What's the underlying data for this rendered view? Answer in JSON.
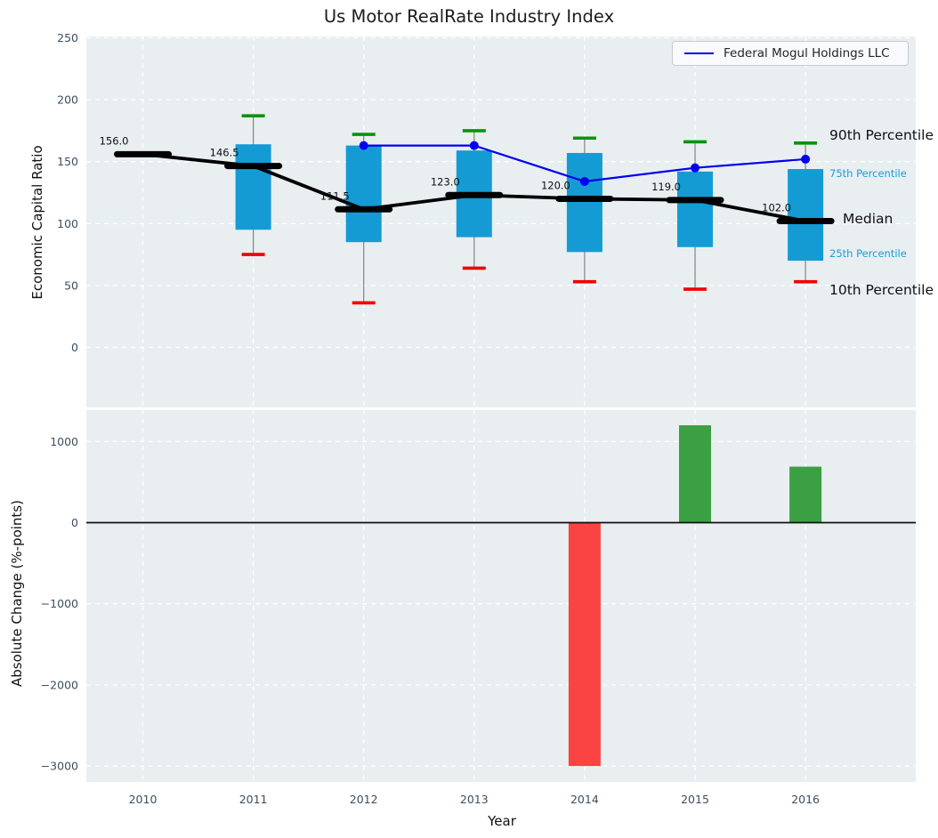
{
  "title": "Us Motor RealRate Industry Index",
  "legend": {
    "label": "Federal Mogul Holdings LLC"
  },
  "annotations": {
    "p90": "90th Percentile",
    "p75": "75th Percentile",
    "median": "Median",
    "p25": "25th Percentile",
    "p10": "10th Percentile"
  },
  "colors": {
    "axes_bg": "#e9eef1",
    "grid": "#ffffff",
    "box": "#149bd4",
    "cap_top": "#079307",
    "cap_bottom": "#ee0000",
    "whisker": "#828282",
    "median": "#000000",
    "company_line": "#0000ee",
    "bar_positive": "#3ba044",
    "bar_negative": "#fa4343",
    "tick_text": "#3e4e60",
    "zero_line": "#111111"
  },
  "chart_data": [
    {
      "type": "box",
      "subplot": "top",
      "title": "Us Motor RealRate Industry Index",
      "ylabel": "Economic Capital Ratio",
      "ylim": [
        -48.5,
        251
      ],
      "ytick_values": [
        0,
        50,
        100,
        150,
        200,
        250
      ],
      "ytick_labels": [
        "0",
        "50",
        "100",
        "150",
        "200",
        "250"
      ],
      "grid": true,
      "legend_position": "upper right",
      "categories": [
        "2010",
        "2011",
        "2012",
        "2013",
        "2014",
        "2015",
        "2016"
      ],
      "series": [
        {
          "name": "Median",
          "type": "line+dash",
          "values": [
            156.0,
            146.5,
            111.5,
            123.0,
            120.0,
            119.0,
            102.0
          ],
          "labels": [
            "156.0",
            "146.5",
            "111.5",
            "123.0",
            "120.0",
            "119.0",
            "102.0"
          ]
        },
        {
          "name": "75th Percentile",
          "type": "box-top",
          "values": [
            null,
            164,
            163,
            159,
            157,
            142,
            144
          ]
        },
        {
          "name": "25th Percentile",
          "type": "box-bottom",
          "values": [
            null,
            95,
            85,
            89,
            77,
            81,
            70
          ]
        },
        {
          "name": "90th Percentile",
          "type": "whisker-cap-top",
          "values": [
            null,
            187,
            172,
            175,
            169,
            166,
            165
          ]
        },
        {
          "name": "10th Percentile",
          "type": "whisker-cap-bottom",
          "values": [
            null,
            75,
            36,
            64,
            53,
            47,
            53
          ]
        },
        {
          "name": "Federal Mogul Holdings LLC",
          "type": "line+marker",
          "values": [
            null,
            null,
            163,
            163,
            134,
            145,
            152
          ]
        }
      ]
    },
    {
      "type": "bar",
      "subplot": "bottom",
      "ylabel": "Absolute Change (%-points)",
      "xlabel": "Year",
      "ylim": [
        -3196,
        1387
      ],
      "ytick_values": [
        1000,
        0,
        -1000,
        -2000,
        -3000
      ],
      "ytick_labels": [
        "1000",
        "0",
        "−1000",
        "−2000",
        "−3000"
      ],
      "grid": true,
      "categories": [
        "2010",
        "2011",
        "2012",
        "2013",
        "2014",
        "2015",
        "2016"
      ],
      "values": [
        null,
        null,
        null,
        null,
        -3000,
        1200,
        690
      ]
    }
  ]
}
